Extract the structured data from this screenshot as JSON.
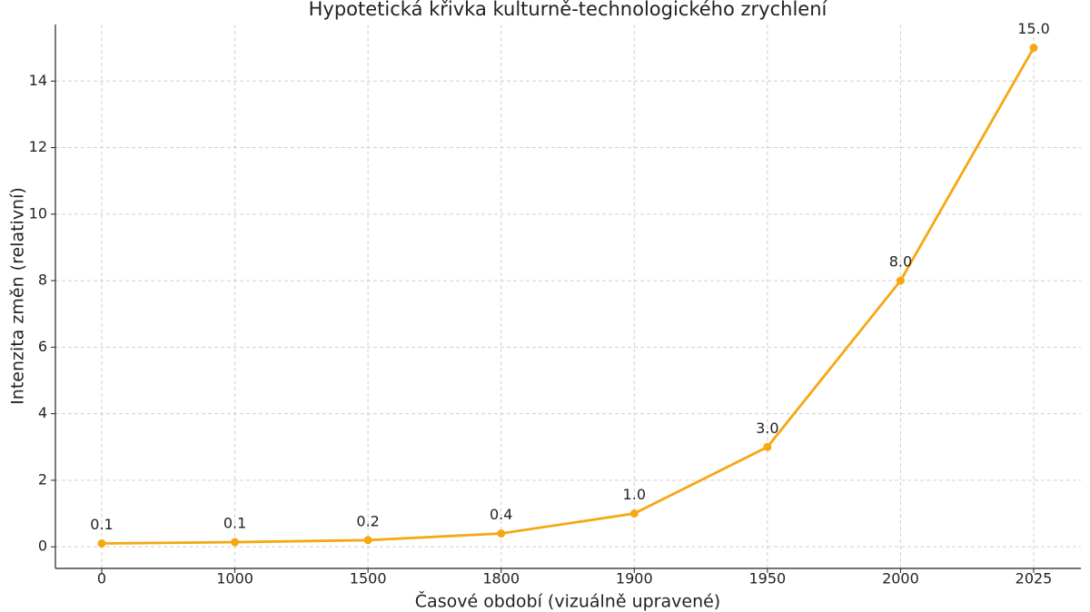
{
  "chart_data": {
    "type": "line",
    "title": "Hypotetická křivka kulturně-technologického zrychlení",
    "x_label": "Časové období (vizuálně upravené)",
    "y_label": "Intenzita změn (relativní)",
    "categories": [
      "0",
      "1000",
      "1500",
      "1800",
      "1900",
      "1950",
      "2000",
      "2025"
    ],
    "series": [
      {
        "name": "Intenzita změn",
        "color": "#f5a811",
        "values": [
          0.1,
          0.14,
          0.2,
          0.4,
          1.0,
          3.0,
          8.0,
          15.0
        ],
        "value_labels": [
          "0.1",
          "0.1",
          "0.2",
          "0.4",
          "1.0",
          "3.0",
          "8.0",
          "15.0"
        ]
      }
    ],
    "ylim": [
      -0.65,
      15.7
    ],
    "yticks": [
      0,
      2,
      4,
      6,
      8,
      10,
      12,
      14
    ],
    "grid": true
  }
}
